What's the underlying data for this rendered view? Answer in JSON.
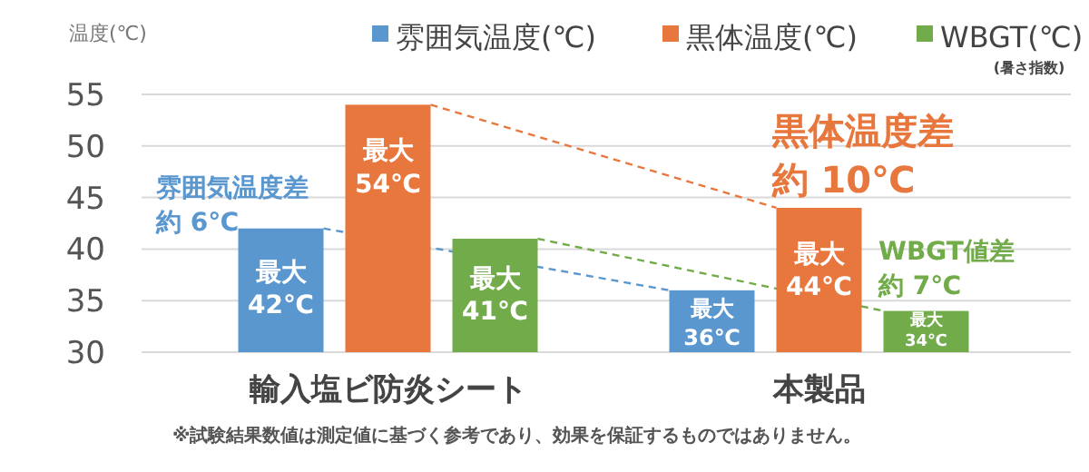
{
  "chart_data": {
    "type": "bar",
    "ylabel": "温度(℃)",
    "categories": [
      "輸入塩ビ防炎シート",
      "本製品"
    ],
    "series": [
      {
        "name": "雰囲気温度(℃)",
        "color": "#5b97cf",
        "values": [
          42,
          36
        ],
        "value_labels": [
          "最大\n42℃",
          "最大\n36℃"
        ]
      },
      {
        "name": "黒体温度(℃)",
        "color": "#e8773d",
        "values": [
          54,
          44
        ],
        "value_labels": [
          "最大\n54℃",
          "最大\n44℃"
        ]
      },
      {
        "name": "WBGT(℃)\n(暑さ指数)",
        "color": "#72ab4a",
        "values": [
          41,
          34
        ],
        "value_labels": [
          "最大\n41℃",
          "最大\n34℃"
        ]
      }
    ],
    "ylim": [
      30,
      55
    ],
    "yticks": [
      30,
      35,
      40,
      45,
      50,
      55
    ],
    "grid": "y",
    "legend": "top",
    "annotations": [
      {
        "text": "雰囲気温度差約 6℃",
        "y": 42
      },
      {
        "text": "黒体温度差約 10℃",
        "x": "本製品",
        "y": 44
      },
      {
        "text": "WBGT値差約 7℃",
        "y": 34
      },
      "※試験結果数値は測定値に基づく参考であり、効果を保証するものではありません。"
    ]
  }
}
